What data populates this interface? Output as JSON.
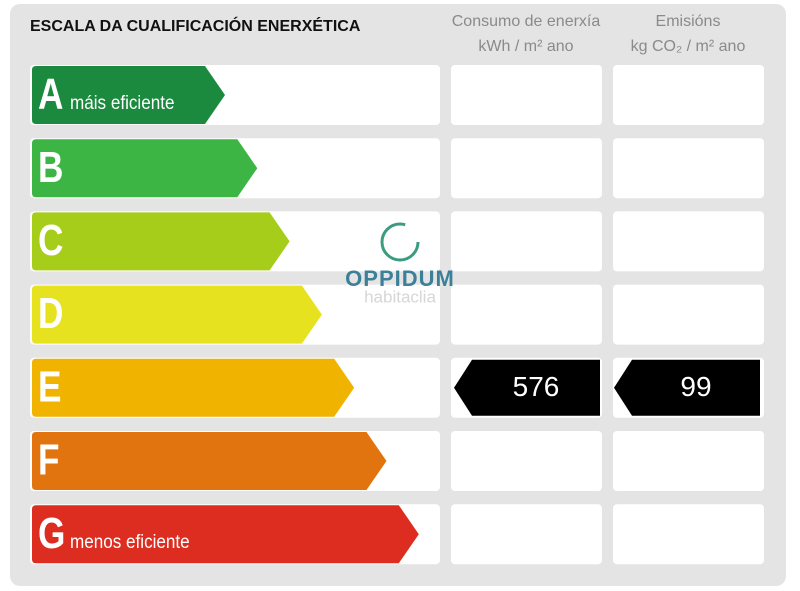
{
  "title": "ESCALA DA CUALIFICACIÓN ENERXÉTICA",
  "columns": [
    {
      "line1": "Consumo de enerxía",
      "line2": "kWh / m² ano"
    },
    {
      "line1": "Emisións",
      "line2": "kg CO₂ / m² ano"
    }
  ],
  "watermark": {
    "brand": "OPPIDUM",
    "sub": "habitaclia"
  },
  "ratings": [
    {
      "letter": "A",
      "label": "máis eficiente",
      "color": "#1b8a3e"
    },
    {
      "letter": "B",
      "color": "#3db545"
    },
    {
      "letter": "C",
      "color": "#a6cd1a"
    },
    {
      "letter": "D",
      "color": "#e6e220"
    },
    {
      "letter": "E",
      "color": "#f0b400",
      "consumption": "576",
      "emissions": "99"
    },
    {
      "letter": "F",
      "color": "#e2740f"
    },
    {
      "letter": "G",
      "label": "menos eficiente",
      "color": "#dc2d20"
    }
  ]
}
